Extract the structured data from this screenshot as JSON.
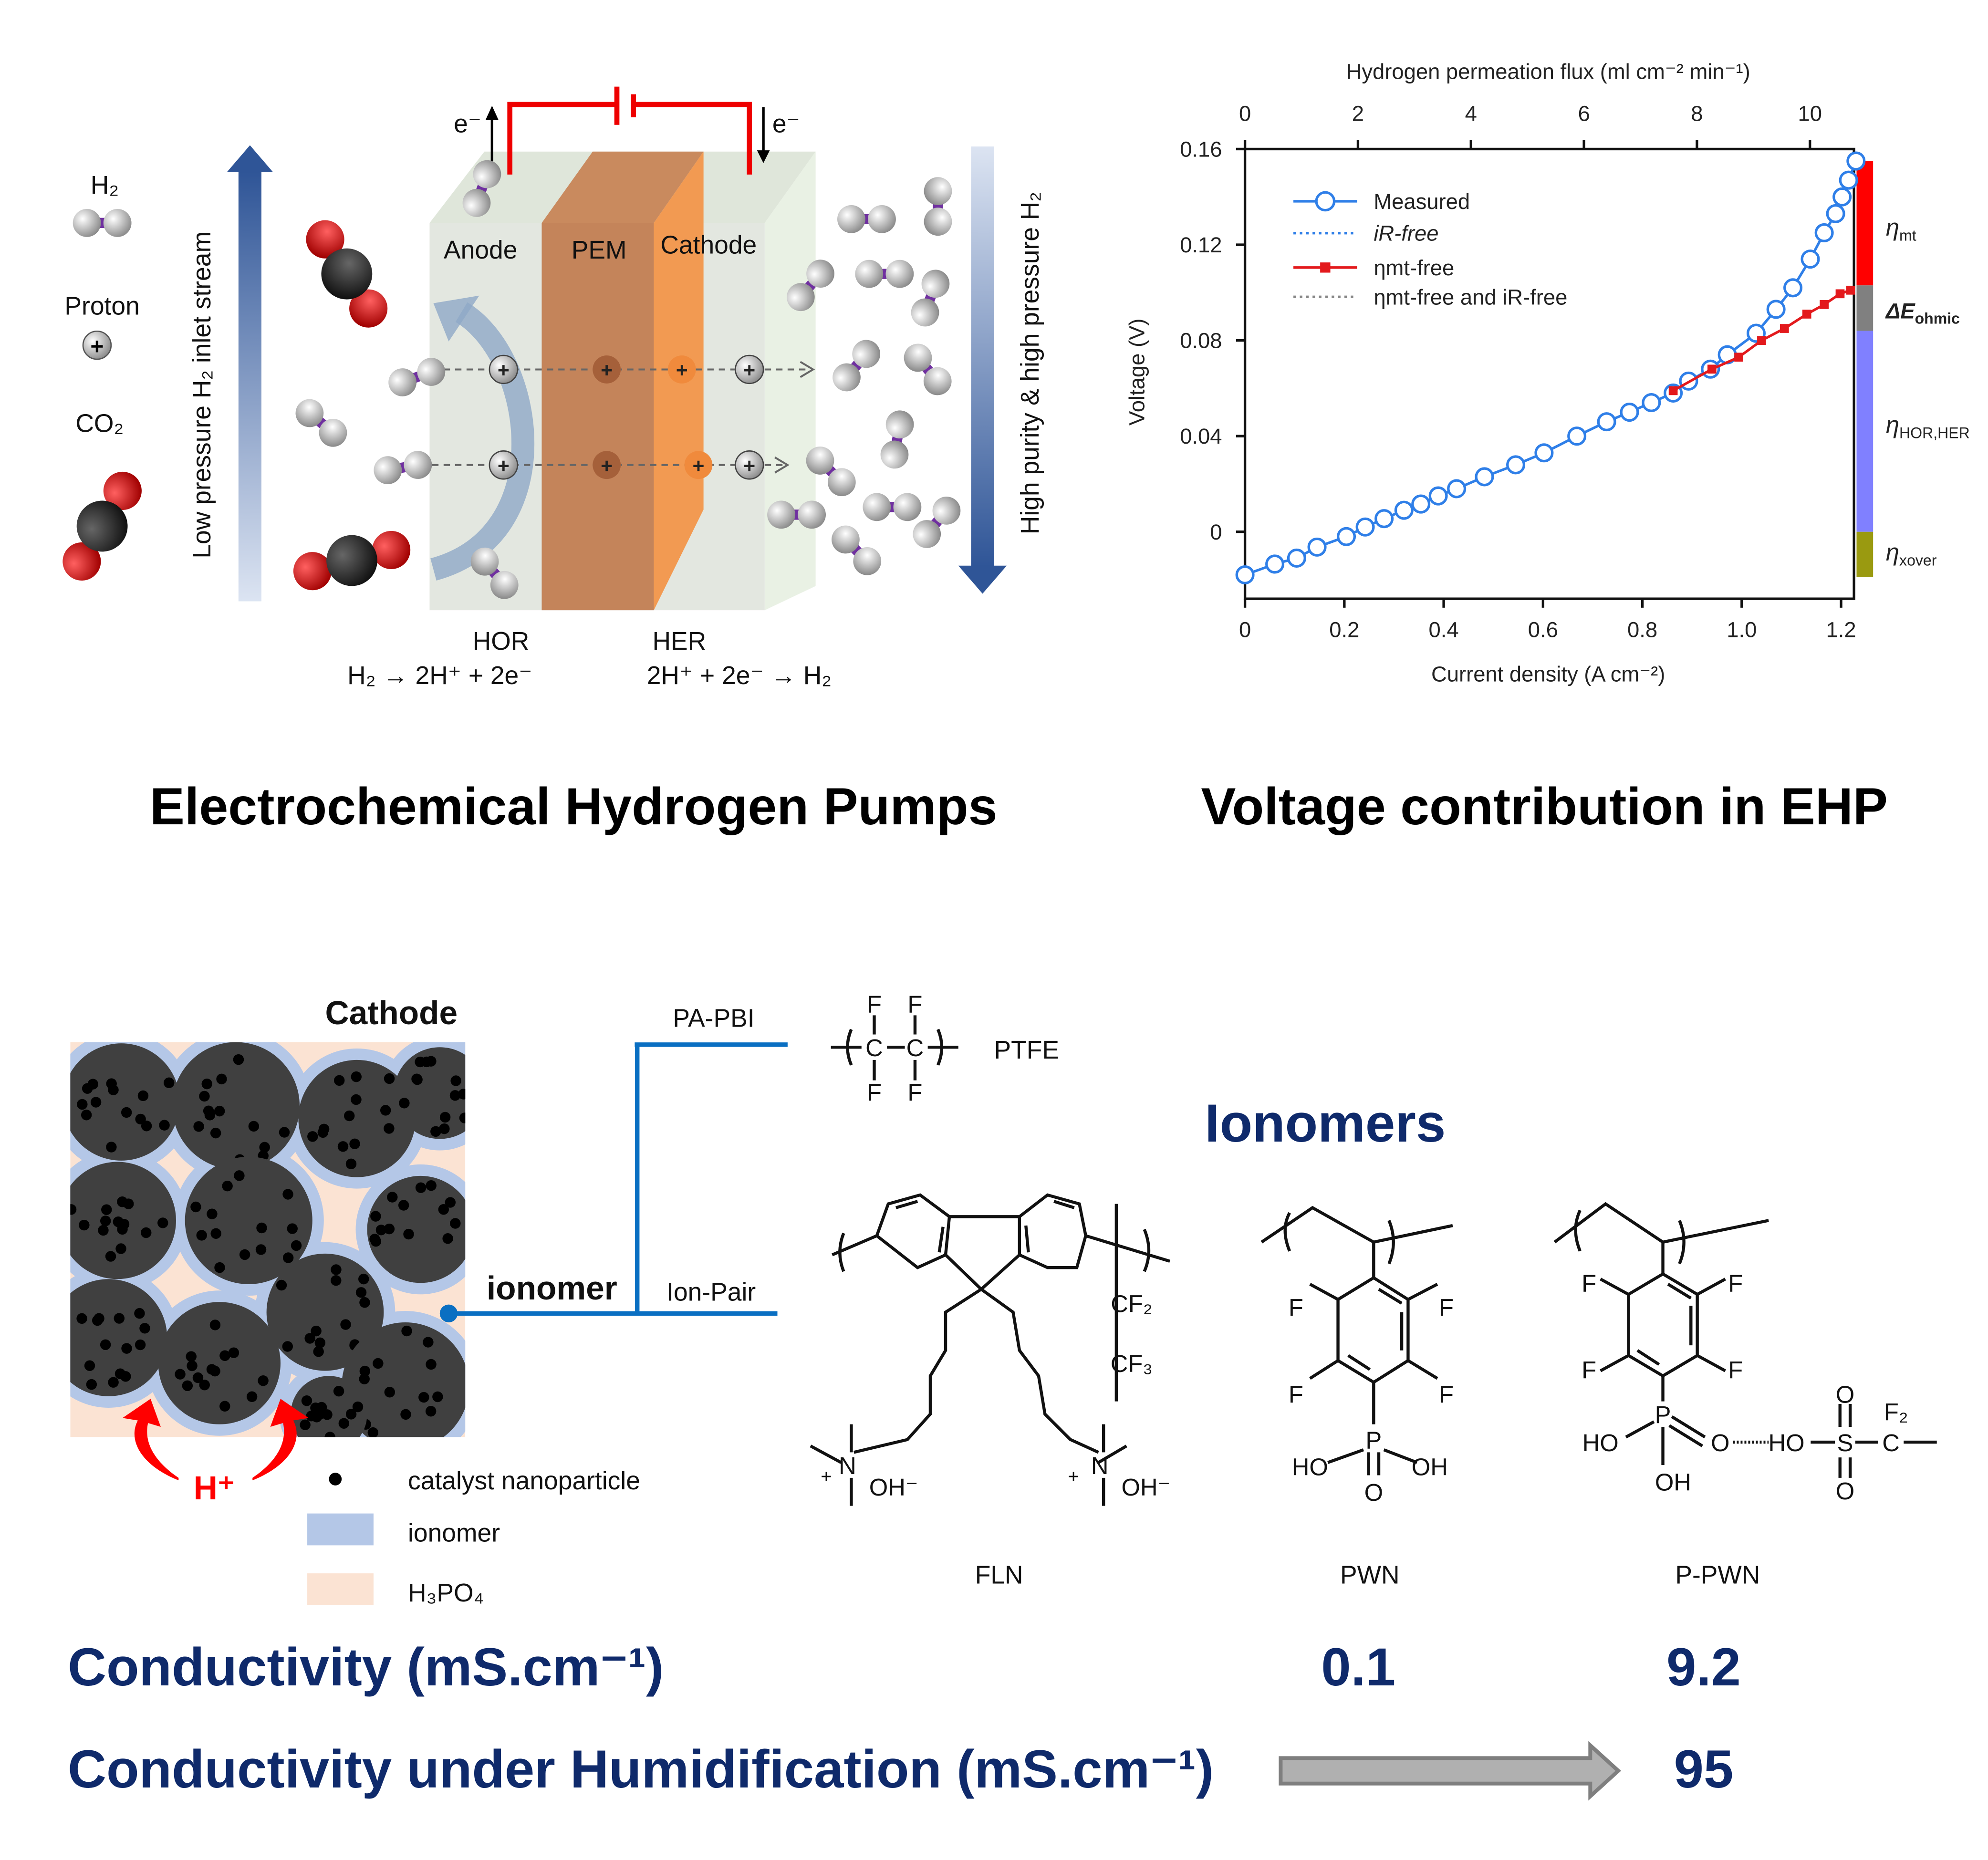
{
  "ehp_diagram": {
    "legend": {
      "h2": "H₂",
      "proton": "Proton",
      "co2": "CO₂",
      "plus": "+"
    },
    "left_arrow_label": "Low pressure H₂ inlet stream",
    "right_arrow_label": "High purity & high pressure H₂",
    "electron_left": "e⁻",
    "electron_right": "e⁻",
    "anode": "Anode",
    "pem": "PEM",
    "cathode": "Cathode",
    "hor_label": "HOR",
    "hor_reaction": "H₂ → 2H⁺ + 2e⁻",
    "her_label": "HER",
    "her_reaction": "2H⁺ + 2e⁻ → H₂",
    "title": "Electrochemical Hydrogen Pumps"
  },
  "chart_title": "Voltage contribution in EHP",
  "chart_data": {
    "type": "line",
    "xlabel": "Current density (A cm⁻²)",
    "ylabel": "Voltage (V)",
    "top_xlabel": "Hydrogen permeation flux (ml cm⁻² min⁻¹)",
    "xlim": [
      0,
      1.226
    ],
    "ylim": [
      -0.028,
      0.16
    ],
    "xticks": [
      "0",
      "0.2",
      "0.4",
      "0.6",
      "0.8",
      "1.0",
      "1.2"
    ],
    "xtick_values": [
      0,
      0.2,
      0.4,
      0.6,
      0.8,
      1.0,
      1.2
    ],
    "yticks": [
      "0",
      "0.04",
      "0.08",
      "0.12",
      "0.16"
    ],
    "ytick_values": [
      0,
      0.04,
      0.08,
      0.12,
      0.16
    ],
    "top_xticks": [
      "0",
      "2",
      "4",
      "6",
      "8",
      "10"
    ],
    "top_xtick_values": [
      0,
      2,
      4,
      6,
      8,
      10
    ],
    "top_xlim": [
      0,
      10.78
    ],
    "grid": false,
    "legend_position": "top-left",
    "legend": [
      "Measured",
      "iR-free",
      "ηmt-free",
      "ηmt-free and iR-free"
    ],
    "series": [
      {
        "name": "Measured",
        "color": "#2f7fe8",
        "x": [
          0,
          0.06,
          0.104,
          0.145,
          0.204,
          0.242,
          0.28,
          0.32,
          0.354,
          0.389,
          0.426,
          0.482,
          0.545,
          0.602,
          0.668,
          0.728,
          0.774,
          0.818,
          0.862,
          0.893,
          0.937,
          0.971,
          1.029,
          1.069,
          1.103,
          1.138,
          1.166,
          1.189,
          1.202,
          1.215,
          1.23
        ],
        "y": [
          -0.018,
          -0.0135,
          -0.011,
          -0.0064,
          -0.002,
          0.002,
          0.0055,
          0.009,
          0.0116,
          0.015,
          0.018,
          0.023,
          0.028,
          0.033,
          0.04,
          0.046,
          0.05,
          0.054,
          0.058,
          0.063,
          0.068,
          0.074,
          0.083,
          0.093,
          0.102,
          0.114,
          0.125,
          0.133,
          0.14,
          0.147,
          0.155
        ]
      },
      {
        "name": "ηmt-free",
        "color": "#e3191c",
        "x": [
          0.862,
          0.94,
          0.994,
          1.04,
          1.086,
          1.131,
          1.166,
          1.198,
          1.219
        ],
        "y": [
          0.059,
          0.068,
          0.073,
          0.08,
          0.085,
          0.091,
          0.095,
          0.0995,
          0.101
        ]
      }
    ],
    "contributions": [
      {
        "name": "ηmt",
        "from": 0.103,
        "to": 0.155,
        "color": "#ff0000"
      },
      {
        "name": "ΔEohmic",
        "from": 0.084,
        "to": 0.103,
        "color": "#808080"
      },
      {
        "name": "ηHOR,HER",
        "from": 0,
        "to": 0.084,
        "color": "#8080ff"
      },
      {
        "name": "ηxover",
        "from": -0.019,
        "to": 0,
        "color": "#9a9a10"
      }
    ],
    "contribution_labels": {
      "mt": "η",
      "mt_sub": "mt",
      "ohmic": "ΔE",
      "ohmic_sub": "ohmic",
      "hor": "η",
      "hor_sub": "HOR,HER",
      "xover": "η",
      "xover_sub": "xover"
    }
  },
  "cathode_panel": {
    "title": "Cathode",
    "ionomer_label": "ionomer",
    "pa_pbi": "PA-PBI",
    "ion_pair": "Ion-Pair",
    "proton": "H⁺",
    "legend": {
      "catalyst": "catalyst nanoparticle",
      "ionomer": "ionomer",
      "h3po4": "H₃PO₄"
    },
    "colors": {
      "ionomer": "#b4c7e7",
      "h3po4": "#fbe3d3",
      "carbon": "#404040",
      "link": "#0a6fc2"
    }
  },
  "ionomers": {
    "heading": "Ionomers",
    "ptfe": {
      "name": "PTFE",
      "F": "F",
      "C": "C"
    },
    "fln": {
      "name": "FLN",
      "cf2": "CF₂",
      "cf3": "CF₃",
      "n": "N",
      "plus": "+",
      "oh": "OH⁻"
    },
    "pwn": {
      "name": "PWN",
      "F": "F",
      "P": "P",
      "HO": "HO",
      "OH": "OH",
      "O": "O"
    },
    "ppwn": {
      "name": "P-PWN",
      "F": "F",
      "P": "P",
      "HO": "HO",
      "OH": "OH",
      "O": "O",
      "S": "S",
      "C": "C",
      "F2": "F₂"
    }
  },
  "conductivity": {
    "label": "Conductivity (mS.cm⁻¹)",
    "pwn": "0.1",
    "ppwn": "9.2",
    "humid_label": "Conductivity under Humidification (mS.cm⁻¹)",
    "humid_ppwn": "95"
  }
}
